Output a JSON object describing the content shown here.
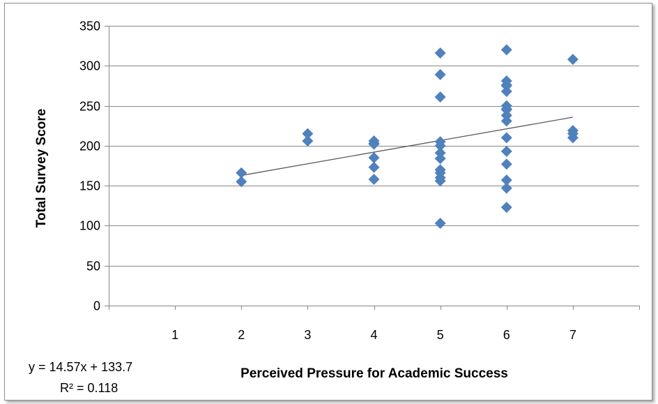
{
  "chart_data": {
    "type": "scatter",
    "title": "",
    "xlabel": "Perceived Pressure for Academic Success",
    "ylabel": "Total Survey Score",
    "xlim": [
      0,
      8
    ],
    "ylim": [
      0,
      350
    ],
    "x_ticks": [
      1,
      2,
      3,
      4,
      5,
      6,
      7
    ],
    "y_ticks": [
      0,
      50,
      100,
      150,
      200,
      250,
      300,
      350
    ],
    "grid": "horizontal",
    "legend": "none",
    "marker": "diamond",
    "marker_color": "#4f81bd",
    "trendline_color": "#595959",
    "series": [
      {
        "x": [
          2,
          2,
          3,
          3,
          4,
          4,
          4,
          4,
          4,
          4,
          5,
          5,
          5,
          5,
          5,
          5,
          5,
          5,
          5,
          5,
          5,
          5,
          6,
          6,
          6,
          6,
          6,
          6,
          6,
          6,
          6,
          6,
          6,
          6,
          6,
          6,
          6,
          6,
          7,
          7,
          7,
          7
        ],
        "y": [
          166,
          155,
          215,
          206,
          206,
          203,
          185,
          173,
          158,
          202,
          316,
          289,
          261,
          205,
          200,
          191,
          184,
          170,
          166,
          160,
          156,
          103,
          320,
          281,
          276,
          268,
          250,
          246,
          238,
          231,
          210,
          193,
          177,
          157,
          147,
          123,
          245,
          275,
          308,
          219,
          215,
          210
        ]
      }
    ],
    "trendline": {
      "equation": "y = 14.57x + 133.7",
      "r_squared": "R² = 0.118",
      "slope": 14.57,
      "intercept": 133.7,
      "x_range": [
        2,
        7
      ]
    }
  }
}
